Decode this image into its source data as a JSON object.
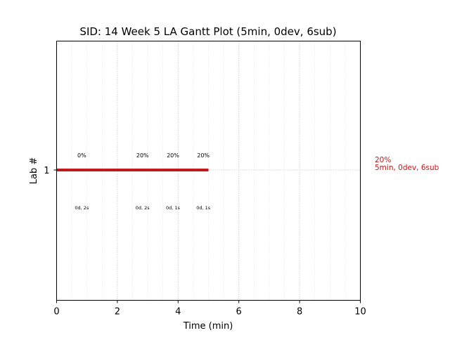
{
  "chart_data": {
    "type": "gantt",
    "title": "SID: 14 Week 5 LA Gantt Plot (5min, 0dev, 6sub)",
    "xlabel": "Time (min)",
    "ylabel": "Lab #",
    "xlim": [
      0,
      10
    ],
    "x_ticks": [
      "0",
      "2",
      "4",
      "6",
      "8",
      "10"
    ],
    "y_ticks": [
      "1"
    ],
    "grid": true,
    "bars": [
      {
        "lab": 1,
        "start": 0,
        "end": 5,
        "color": "#c0181b"
      }
    ],
    "annotations": [
      {
        "x": 0.83,
        "top": "0%",
        "bottom": "0d, 2s"
      },
      {
        "x": 2.83,
        "top": "20%",
        "bottom": "0d, 2s"
      },
      {
        "x": 3.83,
        "top": "20%",
        "bottom": "0d, 1s"
      },
      {
        "x": 4.83,
        "top": "20%",
        "bottom": "0d, 1s"
      }
    ],
    "side_label": {
      "line1": "20%",
      "line2": "5min, 0dev, 6sub",
      "color": "#c0181b"
    }
  }
}
